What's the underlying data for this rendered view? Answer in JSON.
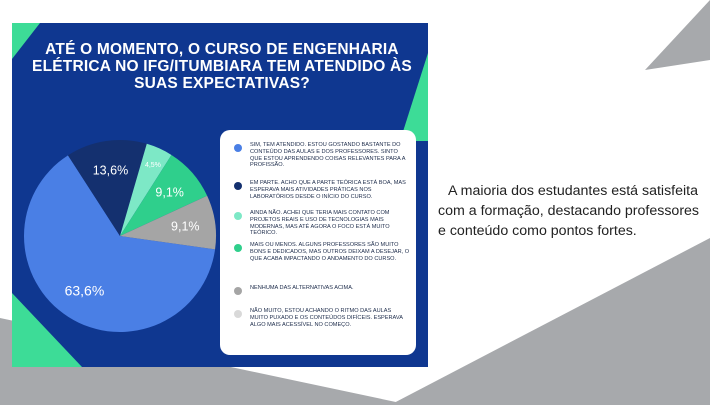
{
  "theme": {
    "bg_gray": "#a7a9ac",
    "navy": "#0f3790",
    "teal": "#3ddc97",
    "blue": "#4a7fe5"
  },
  "poster": {
    "title": "ATÉ O MOMENTO, O CURSO DE ENGENHARIA ELÉTRICA NO IFG/ITUMBIARA TEM ATENDIDO ÀS SUAS EXPECTATIVAS?"
  },
  "chart_data": {
    "type": "pie",
    "title": "ATÉ O MOMENTO, O CURSO DE ENGENHARIA ELÉTRICA NO IFG/ITUMBIARA TEM ATENDIDO ÀS SUAS EXPECTATIVAS?",
    "slices": [
      {
        "label": "SIM, TEM ATENDIDO. ESTOU GOSTANDO BASTANTE DO CONTEÚDO DAS AULAS E DOS PROFESSORES. SINTO QUE ESTOU APRENDENDO COISAS RELEVANTES PARA A PROFISSÃO.",
        "value": 63.6,
        "display": "63,6%",
        "color": "#4a7fe5"
      },
      {
        "label": "EM PARTE. ACHO QUE A PARTE TEÓRICA ESTÁ BOA, MAS ESPERAVA MAIS ATIVIDADES PRÁTICAS NOS LABORATÓRIOS DESDE O INÍCIO DO CURSO.",
        "value": 13.6,
        "display": "13,6%",
        "color": "#14306f"
      },
      {
        "label": "AINDA NÃO. ACHEI QUE TERIA MAIS CONTATO COM PROJETOS REAIS E USO DE TECNOLOGIAS MAIS MODERNAS, MAS ATÉ AGORA O FOCO ESTÁ MUITO TEÓRICO.",
        "value": 4.5,
        "display": "4,5%",
        "color": "#7de8c6"
      },
      {
        "label": "MAIS OU MENOS. ALGUNS PROFESSORES SÃO MUITO BONS E DEDICADOS, MAS OUTROS DEIXAM A DESEJAR, O QUE ACABA IMPACTANDO O ANDAMENTO DO CURSO.",
        "value": 9.1,
        "display": "9,1%",
        "color": "#2fcf8c"
      },
      {
        "label": "NENHUMA DAS ALTERNATIVAS ACIMA.",
        "value": 9.1,
        "display": "9,1%",
        "color": "#a5a5a5"
      },
      {
        "label": "NÃO MUITO, ESTOU ACHANDO O RITMO DAS AULAS MUITO PUXADO E OS CONTEÚDOS DIFÍCEIS. ESPERAVA ALGO MAIS ACESSÍVEL NO COMEÇO.",
        "value": 0,
        "display": "",
        "color": "#d9d9d9"
      }
    ]
  },
  "caption": {
    "text": "A maioria dos estudantes está satisfeita com a formação, destacando professores e conteúdo como pontos fortes."
  }
}
